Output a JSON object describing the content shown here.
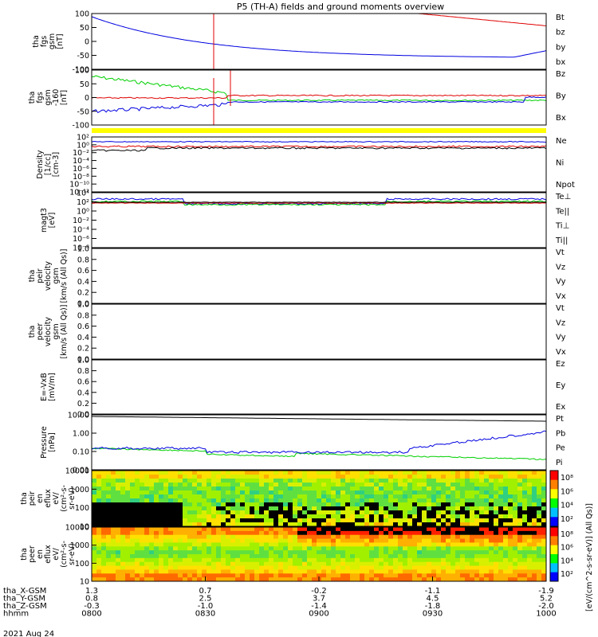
{
  "title": "P5 (TH-A) fields and ground moments overview",
  "date_label": "2021 Aug 24",
  "colors": {
    "black": "#000000",
    "red": "#e00000",
    "green": "#00d000",
    "blue": "#0000e0",
    "yellow": "#ffff00"
  },
  "chart_data": [
    {
      "type": "line",
      "ylabel": [
        "tha",
        "fgs",
        "gsm",
        "[nT]"
      ],
      "yticks": [
        "100",
        "50",
        "0",
        "-50",
        "-100"
      ],
      "ylim": [
        -100,
        100
      ],
      "legend": [
        {
          "name": "Bt",
          "color": "black"
        },
        {
          "name": "bz",
          "color": "red"
        },
        {
          "name": "by",
          "color": "green"
        },
        {
          "name": "bx",
          "color": "blue"
        }
      ]
    },
    {
      "type": "line",
      "ylabel": [
        "tha",
        "fgs",
        "gsm",
        "-160",
        "[nT]"
      ],
      "yticks": [
        "100",
        "50",
        "0",
        "-50",
        "-100"
      ],
      "ylim": [
        -120,
        100
      ],
      "legend": [
        {
          "name": "Bz",
          "color": "red"
        },
        {
          "name": "By",
          "color": "green"
        },
        {
          "name": "Bx",
          "color": "blue"
        }
      ]
    },
    {
      "type": "line",
      "ylabel": [
        "Density",
        "[1/cc]",
        "[cm-3]"
      ],
      "yticks": [
        "10²",
        "10⁰",
        "10⁻²",
        "10⁻⁴",
        "10⁻⁶",
        "10⁻⁸",
        "10⁻¹⁰",
        "10⁻¹²"
      ],
      "ylim": [
        1e-12,
        100
      ],
      "legend": [
        {
          "name": "Ne",
          "color": "red"
        },
        {
          "name": "Ni",
          "color": "black"
        },
        {
          "name": "Npot",
          "color": "blue"
        }
      ]
    },
    {
      "type": "line",
      "ylabel": [
        "magt3",
        "[eV]"
      ],
      "yticks": [
        "10⁴",
        "10²",
        "10⁰",
        "10⁻²",
        "10⁻⁴",
        "10⁻⁶",
        "10⁻⁸"
      ],
      "ylim": [
        1e-08,
        10000.0
      ],
      "legend": [
        {
          "name": "Te⊥",
          "color": "red"
        },
        {
          "name": "Te||",
          "color": "black"
        },
        {
          "name": "Ti⊥",
          "color": "blue"
        },
        {
          "name": "Ti||",
          "color": "green"
        }
      ]
    },
    {
      "type": "line",
      "ylabel": [
        "tha",
        "peir",
        "velocity",
        "gsm",
        "[km/s (All Qs)]"
      ],
      "yticks": [
        "1.0",
        "0.8",
        "0.6",
        "0.4",
        "0.2",
        "0.0"
      ],
      "ylim": [
        0,
        1
      ],
      "legend": [
        {
          "name": "Vt",
          "color": "black"
        },
        {
          "name": "Vz",
          "color": "red"
        },
        {
          "name": "Vy",
          "color": "green"
        },
        {
          "name": "Vx",
          "color": "blue"
        }
      ]
    },
    {
      "type": "line",
      "ylabel": [
        "tha",
        "peer",
        "velocity",
        "gsm",
        "[km/s (All Qs)]"
      ],
      "yticks": [
        "1.0",
        "0.8",
        "0.6",
        "0.4",
        "0.2",
        "0.0"
      ],
      "ylim": [
        0,
        1
      ],
      "legend": [
        {
          "name": "Vt",
          "color": "black"
        },
        {
          "name": "Vz",
          "color": "red"
        },
        {
          "name": "Vy",
          "color": "green"
        },
        {
          "name": "Vx",
          "color": "blue"
        }
      ]
    },
    {
      "type": "line",
      "ylabel": [
        "E=-VxB",
        "[mV/m]"
      ],
      "yticks": [
        "1.0",
        "0.8",
        "0.6",
        "0.4",
        "0.2",
        "0.0"
      ],
      "ylim": [
        0,
        1
      ],
      "legend": [
        {
          "name": "Ez",
          "color": "red"
        },
        {
          "name": "Ey",
          "color": "green"
        },
        {
          "name": "Ex",
          "color": "blue"
        }
      ]
    },
    {
      "type": "line",
      "ylabel": [
        "Pressure",
        "[nPa]"
      ],
      "yticks": [
        "10.00",
        "1.00",
        "0.10",
        "0.01"
      ],
      "ylim": [
        0.005,
        15
      ],
      "legend": [
        {
          "name": "Pt",
          "color": "black"
        },
        {
          "name": "Pb",
          "color": "red"
        },
        {
          "name": "Pe",
          "color": "green"
        },
        {
          "name": "Pi",
          "color": "blue"
        }
      ]
    },
    {
      "type": "heatmap",
      "ylabel": [
        "tha",
        "peir",
        "en",
        "eflux",
        "eV/",
        "(cm²-s-",
        "sr-eV)"
      ],
      "yticks": [
        "10000",
        "1000",
        "100",
        "10"
      ],
      "ylim": [
        5,
        25000
      ],
      "colorbar_ticks": [
        "10⁸",
        "10⁶",
        "10⁴",
        "10²"
      ],
      "colorbar_label": "[eV/(cm^2-s-sr-eV)] (All Qs)]"
    },
    {
      "type": "heatmap",
      "ylabel": [
        "tha",
        "peer",
        "en",
        "eflux",
        "eV/",
        "(cm²-s-",
        "sr-eV)"
      ],
      "yticks": [
        "10000",
        "1000",
        "100",
        "10"
      ],
      "ylim": [
        5,
        25000
      ],
      "colorbar_ticks": [
        "10⁸",
        "10⁶",
        "10⁴",
        "10²"
      ],
      "colorbar_label": "[eV/(cm^2-s-sr-eV)] (All Qs)]"
    }
  ],
  "x_axis": {
    "rows": [
      {
        "label": "tha_X-GSM",
        "values": [
          "1.3",
          "0.7",
          "-0.2",
          "-1.1",
          "-1.9"
        ]
      },
      {
        "label": "tha_Y-GSM",
        "values": [
          "0.8",
          "2.5",
          "3.7",
          "4.5",
          "5.2"
        ]
      },
      {
        "label": "tha_Z-GSM",
        "values": [
          "-0.3",
          "-1.0",
          "-1.4",
          "-1.8",
          "-2.0"
        ]
      },
      {
        "label": "hhmm",
        "values": [
          "0800",
          "0830",
          "0900",
          "0930",
          "1000"
        ]
      }
    ]
  }
}
